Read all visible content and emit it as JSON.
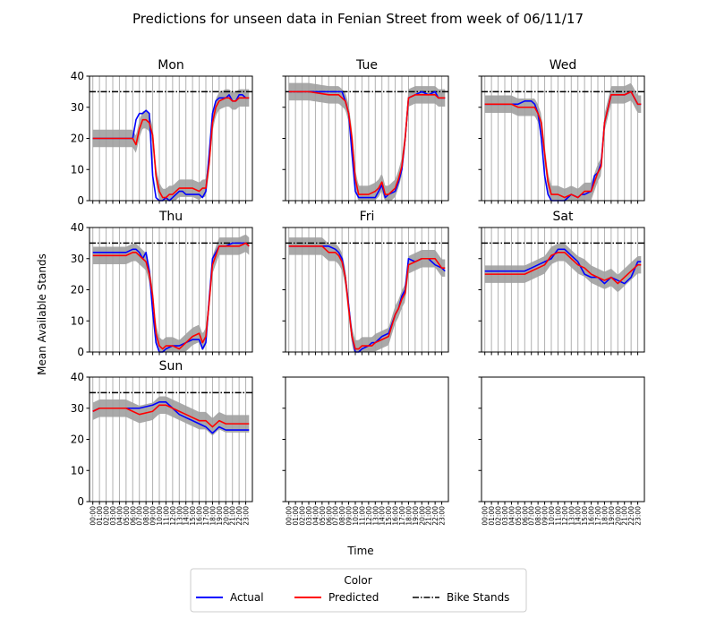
{
  "figure": {
    "title": "Predictions for unseen data in Fenian Street from week of 06/11/17",
    "xlabel": "Time",
    "ylabel": "Mean Available Stands",
    "bike_stands": 35,
    "ylim": [
      0,
      40
    ],
    "yticks": [
      "0",
      "10",
      "20",
      "30",
      "40"
    ],
    "xticks": [
      "00:00",
      "01:00",
      "02:00",
      "03:00",
      "04:00",
      "05:00",
      "06:00",
      "07:00",
      "08:00",
      "09:00",
      "10:00",
      "11:00",
      "12:00",
      "13:00",
      "14:00",
      "15:00",
      "16:00",
      "17:00",
      "18:00",
      "19:00",
      "20:00",
      "21:00",
      "22:00",
      "23:00"
    ],
    "colors": {
      "actual": "#0000ff",
      "predicted": "#ff0000",
      "band": "#a0a0a0",
      "bike_stands": "#000000",
      "grid": "#b0b0b0"
    }
  },
  "legend": {
    "title": "Color",
    "actual": "Actual",
    "predicted": "Predicted",
    "bike_stands": "Bike Stands"
  },
  "chart_data": [
    {
      "type": "line",
      "title": "Mon",
      "x": [
        0,
        3,
        6,
        6.5,
        7,
        7.5,
        8,
        8.5,
        9,
        9.5,
        10,
        10.5,
        11,
        11.5,
        12,
        13,
        13.5,
        14,
        15,
        16,
        16.5,
        17,
        17.5,
        18,
        18.5,
        19,
        20,
        20.5,
        21,
        21.5,
        22,
        22.5,
        23,
        23.5
      ],
      "series": [
        {
          "name": "Actual",
          "values": [
            20,
            20,
            20,
            26,
            28,
            28,
            29,
            28,
            8,
            1,
            0,
            0,
            1,
            0,
            1,
            3,
            3,
            2,
            2,
            2,
            1,
            3,
            15,
            28,
            32,
            33,
            33,
            34,
            32,
            32,
            34,
            34,
            33,
            33
          ]
        },
        {
          "name": "Predicted",
          "values": [
            20,
            20,
            20,
            18,
            23,
            26,
            26,
            25,
            21,
            8,
            3,
            1,
            1,
            2,
            2,
            4,
            4,
            4,
            4,
            3,
            4,
            4,
            12,
            25,
            30,
            32,
            33,
            33,
            32,
            32,
            33,
            33,
            33,
            33
          ]
        }
      ]
    },
    {
      "type": "line",
      "title": "Tue",
      "x": [
        0,
        3,
        6,
        6.5,
        7,
        7.5,
        8,
        8.5,
        9,
        9.5,
        10,
        10.5,
        11,
        12,
        13,
        13.5,
        14,
        14.5,
        15,
        16,
        16.5,
        17,
        17.5,
        18,
        19,
        20,
        21,
        22,
        22.5,
        23,
        23.5
      ],
      "series": [
        {
          "name": "Actual",
          "values": [
            35,
            35,
            35,
            35,
            35,
            35,
            35,
            32,
            28,
            15,
            3,
            1,
            1,
            1,
            1,
            3,
            5,
            1,
            2,
            3,
            6,
            10,
            20,
            33,
            34,
            35,
            34,
            35,
            33,
            33,
            33
          ]
        },
        {
          "name": "Predicted",
          "values": [
            35,
            35,
            34,
            34,
            34,
            34,
            33,
            32,
            28,
            20,
            7,
            2,
            2,
            2,
            3,
            4,
            6,
            2,
            2,
            4,
            7,
            11,
            20,
            33,
            34,
            34,
            34,
            34,
            33,
            33,
            33
          ]
        }
      ]
    },
    {
      "type": "line",
      "title": "Wed",
      "x": [
        0,
        3,
        4,
        5,
        6,
        7,
        7.5,
        8,
        8.5,
        9,
        9.5,
        10,
        10.5,
        11,
        12,
        13,
        14,
        14.5,
        15,
        16,
        16.5,
        17,
        17.5,
        18,
        19,
        20,
        21,
        22,
        22.5,
        23,
        23.5
      ],
      "series": [
        {
          "name": "Actual",
          "values": [
            31,
            31,
            31,
            31,
            32,
            32,
            31,
            28,
            20,
            8,
            2,
            0,
            0,
            0,
            0,
            2,
            1,
            2,
            2,
            3,
            8,
            9,
            12,
            25,
            34,
            34,
            34,
            35,
            33,
            31,
            31
          ]
        },
        {
          "name": "Predicted",
          "values": [
            31,
            31,
            31,
            30,
            30,
            30,
            30,
            28,
            25,
            15,
            6,
            2,
            2,
            2,
            1,
            2,
            1,
            2,
            3,
            3,
            6,
            9,
            11,
            25,
            34,
            34,
            34,
            35,
            33,
            31,
            31
          ]
        }
      ]
    },
    {
      "type": "line",
      "title": "Thu",
      "x": [
        0,
        3,
        4,
        5,
        6,
        6.5,
        7,
        7.5,
        8,
        8.5,
        9,
        9.5,
        10,
        10.5,
        11,
        12,
        13,
        14,
        15,
        16,
        16.5,
        17,
        17.5,
        18,
        19,
        20,
        21,
        22,
        23,
        23.5
      ],
      "series": [
        {
          "name": "Actual",
          "values": [
            32,
            32,
            32,
            32,
            33,
            33,
            32,
            30,
            32,
            26,
            13,
            3,
            0,
            0,
            1,
            2,
            2,
            3,
            4,
            4,
            1,
            3,
            17,
            30,
            34,
            34,
            35,
            35,
            35,
            34
          ]
        },
        {
          "name": "Predicted",
          "values": [
            31,
            31,
            31,
            31,
            32,
            32,
            31,
            30,
            29,
            25,
            18,
            6,
            2,
            1,
            2,
            2,
            1,
            3,
            5,
            6,
            3,
            5,
            16,
            28,
            34,
            34,
            34,
            34,
            35,
            34
          ]
        }
      ]
    },
    {
      "type": "line",
      "title": "Fri",
      "x": [
        0,
        3,
        4,
        5,
        6,
        7,
        7.5,
        8,
        8.5,
        9,
        9.5,
        10,
        10.5,
        11,
        12,
        12.5,
        13,
        14,
        15,
        16,
        16.5,
        17,
        17.5,
        18,
        19,
        20,
        21,
        22,
        23,
        23.5
      ],
      "series": [
        {
          "name": "Actual",
          "values": [
            34,
            34,
            34,
            34,
            34,
            33,
            32,
            30,
            24,
            15,
            5,
            0,
            0,
            1,
            2,
            3,
            3,
            5,
            6,
            12,
            14,
            18,
            20,
            30,
            29,
            30,
            30,
            28,
            27,
            26
          ]
        },
        {
          "name": "Predicted",
          "values": [
            34,
            34,
            34,
            34,
            32,
            32,
            31,
            29,
            24,
            14,
            5,
            1,
            1,
            2,
            2,
            2,
            3,
            4,
            5,
            12,
            14,
            17,
            19,
            28,
            29,
            30,
            30,
            30,
            27,
            27
          ]
        }
      ]
    },
    {
      "type": "line",
      "title": "Sat",
      "x": [
        0,
        3,
        5,
        6,
        7,
        8,
        9,
        10,
        11,
        12,
        13,
        14,
        15,
        16,
        17,
        18,
        19,
        20,
        21,
        22,
        23,
        23.5
      ],
      "series": [
        {
          "name": "Actual",
          "values": [
            26,
            26,
            26,
            26,
            27,
            28,
            29,
            30,
            33,
            33,
            31,
            29,
            25,
            24,
            24,
            22,
            24,
            23,
            22,
            24,
            29,
            29
          ]
        },
        {
          "name": "Predicted",
          "values": [
            25,
            25,
            25,
            25,
            26,
            27,
            28,
            31,
            32,
            32,
            30,
            28,
            27,
            25,
            24,
            23,
            24,
            22,
            24,
            26,
            28,
            28
          ]
        }
      ]
    },
    {
      "type": "line",
      "title": "Sun",
      "x": [
        0,
        1,
        3,
        5,
        6,
        7,
        9,
        10,
        11,
        12,
        13,
        14,
        15,
        16,
        17,
        18,
        19,
        20,
        21,
        22,
        23,
        23.5
      ],
      "series": [
        {
          "name": "Actual",
          "values": [
            29,
            30,
            30,
            30,
            30,
            30,
            31,
            32,
            32,
            30,
            28,
            27,
            26,
            25,
            24,
            22,
            24,
            23,
            23,
            23,
            23,
            23
          ]
        },
        {
          "name": "Predicted",
          "values": [
            29,
            30,
            30,
            30,
            29,
            28,
            29,
            31,
            31,
            30,
            29,
            28,
            27,
            26,
            26,
            24,
            26,
            25,
            25,
            25,
            25,
            25
          ]
        }
      ]
    }
  ]
}
